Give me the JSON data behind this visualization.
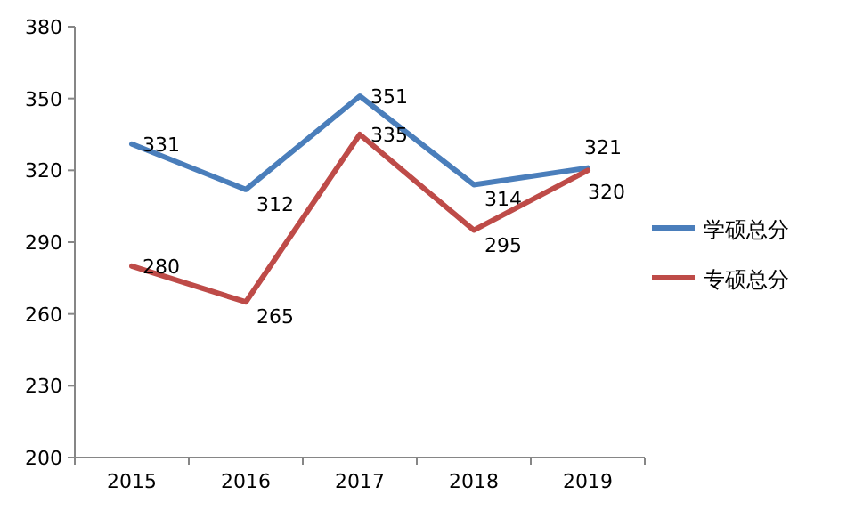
{
  "chart_data": {
    "type": "line",
    "categories": [
      "2015",
      "2016",
      "2017",
      "2018",
      "2019"
    ],
    "series": [
      {
        "name": "学硕总分",
        "color": "#4a7ebb",
        "values": [
          331,
          312,
          351,
          314,
          321
        ]
      },
      {
        "name": "专硕总分",
        "color": "#be4b48",
        "values": [
          280,
          265,
          335,
          295,
          320
        ]
      }
    ],
    "ylim": [
      200,
      380
    ],
    "yticks": [
      200,
      230,
      260,
      290,
      320,
      350,
      380
    ],
    "grid": false,
    "legend": "right",
    "data_labels": true,
    "marker": "none",
    "line_style": "solid"
  }
}
